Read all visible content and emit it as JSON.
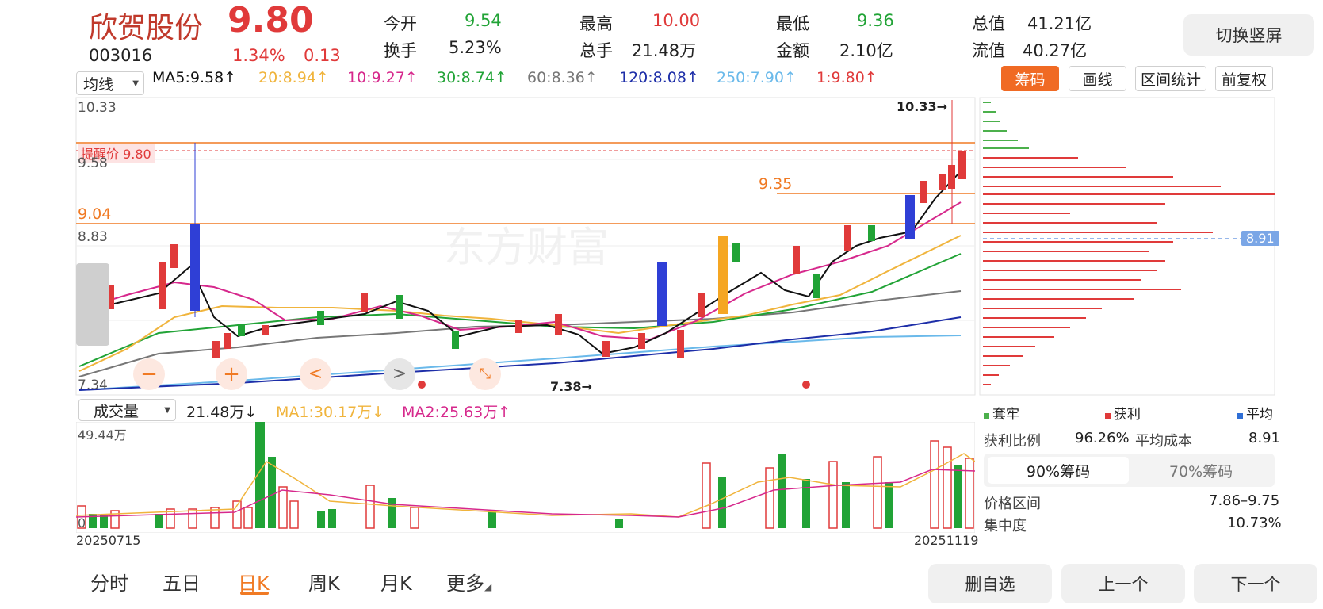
{
  "header": {
    "stock_name": "欣贺股份",
    "price": "9.80",
    "code": "003016",
    "change_pct": "1.34%",
    "change_amt": "0.13",
    "stats": [
      {
        "label": "今开",
        "value": "9.54",
        "color": "green"
      },
      {
        "label": "最高",
        "value": "10.00",
        "color": "red"
      },
      {
        "label": "最低",
        "value": "9.36",
        "color": "green"
      },
      {
        "label": "总值",
        "value": "41.21亿",
        "color": "dark"
      },
      {
        "label": "换手",
        "value": "5.23%",
        "color": "dark"
      },
      {
        "label": "总手",
        "value": "21.48万",
        "color": "dark"
      },
      {
        "label": "金额",
        "value": "2.10亿",
        "color": "dark"
      },
      {
        "label": "流值",
        "value": "40.27亿",
        "color": "dark"
      }
    ],
    "switch_button": "切换竖屏"
  },
  "indicators": {
    "type_select": "均线",
    "items": [
      {
        "text": "MA5:9.58↑",
        "color": "#111111"
      },
      {
        "text": "20:8.94↑",
        "color": "#f0b43c"
      },
      {
        "text": "10:9.27↑",
        "color": "#d6288c"
      },
      {
        "text": "30:8.74↑",
        "color": "#21a336"
      },
      {
        "text": "60:8.36↑",
        "color": "#777777"
      },
      {
        "text": "120:8.08↑",
        "color": "#1d2ea8"
      },
      {
        "text": "250:7.90↑",
        "color": "#6ab9ea"
      },
      {
        "text": "1:9.80↑",
        "color": "#e03a3a"
      }
    ]
  },
  "tools": {
    "chips": "筹码",
    "draw": "画线",
    "range_stats": "区间统计",
    "adjust": "前复权"
  },
  "chart": {
    "y_top": "10.33",
    "y_mid1": "9.58",
    "y_mid2": "8.83",
    "y_bot": "7.34",
    "alert_label": "提醒价 9.80",
    "level_904": "9.04",
    "level_935": "9.35",
    "high_mark": "10.33→",
    "low_mark": "7.38→",
    "chip_cost": "8.91",
    "watermark": "东方财富"
  },
  "volume": {
    "type_select": "成交量",
    "current": "21.48万↓",
    "ma1": "MA1:30.17万↓",
    "ma2": "MA2:25.63万↑",
    "y_top": "49.44万",
    "y_zero": "0",
    "date_start": "20250715",
    "date_end": "20251119"
  },
  "chips_panel": {
    "legend": [
      {
        "label": "套牢",
        "color": "#4cb04c"
      },
      {
        "label": "获利",
        "color": "#e03a3a"
      },
      {
        "label": "平均",
        "color": "#2f6fd6"
      }
    ],
    "profit_ratio_label": "获利比例",
    "profit_ratio": "96.26%",
    "avg_cost_label": "平均成本",
    "avg_cost": "8.91",
    "tab90": "90%筹码",
    "tab70": "70%筹码",
    "price_range_label": "价格区间",
    "price_range": "7.86–9.75",
    "concentration_label": "集中度",
    "concentration": "10.73%"
  },
  "bottom_tabs": [
    "分时",
    "五日",
    "日K",
    "周K",
    "月K",
    "更多"
  ],
  "bottom_buttons": {
    "remove": "删自选",
    "prev": "上一个",
    "next": "下一个"
  },
  "chart_data": {
    "type": "candlestick",
    "date_range": [
      "20250715",
      "20251119"
    ],
    "y_axis_labels": [
      10.33,
      9.58,
      8.83,
      7.34
    ],
    "price_lines": [
      9.8,
      9.35,
      9.04
    ],
    "period_high": 10.33,
    "period_low": 7.38,
    "latest": {
      "open": 9.54,
      "high": 10.0,
      "low": 9.36,
      "close": 9.8,
      "volume_wan": 21.48
    },
    "ma": {
      "MA5": 9.58,
      "MA10": 9.27,
      "MA20": 8.94,
      "MA30": 8.74,
      "MA60": 8.36,
      "MA120": 8.08,
      "MA250": 7.9
    },
    "volume_ma": {
      "MA1": 30.17,
      "MA2": 25.63
    },
    "volume_ylim": [
      0,
      49.44
    ],
    "chip_distribution": {
      "avg_cost": 8.91,
      "profit_ratio": 96.26,
      "range_90": [
        7.86,
        9.75
      ],
      "concentration": 10.73
    }
  }
}
